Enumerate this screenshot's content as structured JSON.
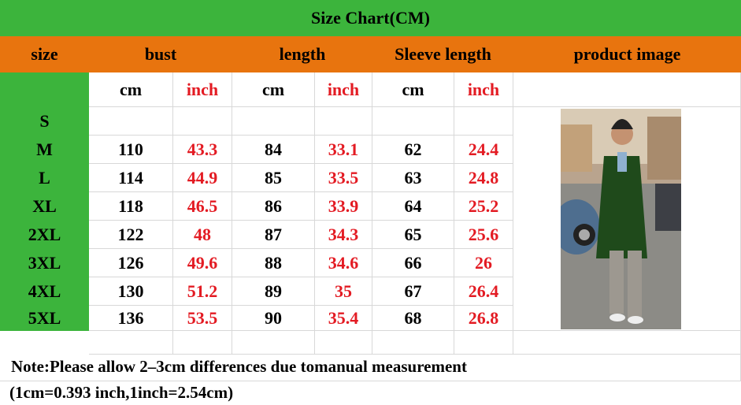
{
  "header": {
    "title": "Size Chart(CM)"
  },
  "table": {
    "columns": [
      "size",
      "bust",
      "length",
      "Sleeve length",
      "product image"
    ],
    "units": [
      "cm",
      "inch",
      "cm",
      "inch",
      "cm",
      "inch"
    ],
    "rows": [
      [
        "S"
      ],
      [
        "M",
        110,
        43.3,
        84,
        33.1,
        62,
        24.4
      ],
      [
        "L",
        114,
        44.9,
        85,
        33.5,
        63,
        24.8
      ],
      [
        "XL",
        118,
        46.5,
        86,
        33.9,
        64,
        25.2
      ],
      [
        "2XL",
        122,
        48,
        87,
        34.3,
        65,
        25.6
      ],
      [
        "3XL",
        126,
        49.6,
        88,
        34.6,
        66,
        26
      ],
      [
        "4XL",
        130,
        51.2,
        89,
        35,
        67,
        26.4
      ],
      [
        "5XL",
        136,
        53.5,
        90,
        35.4,
        68,
        26.8
      ]
    ]
  },
  "notes": [
    "Note:Please allow 2–3cm differences due tomanual measurement",
    "(1cm=0.393 inch,1inch=2.54cm)"
  ]
}
